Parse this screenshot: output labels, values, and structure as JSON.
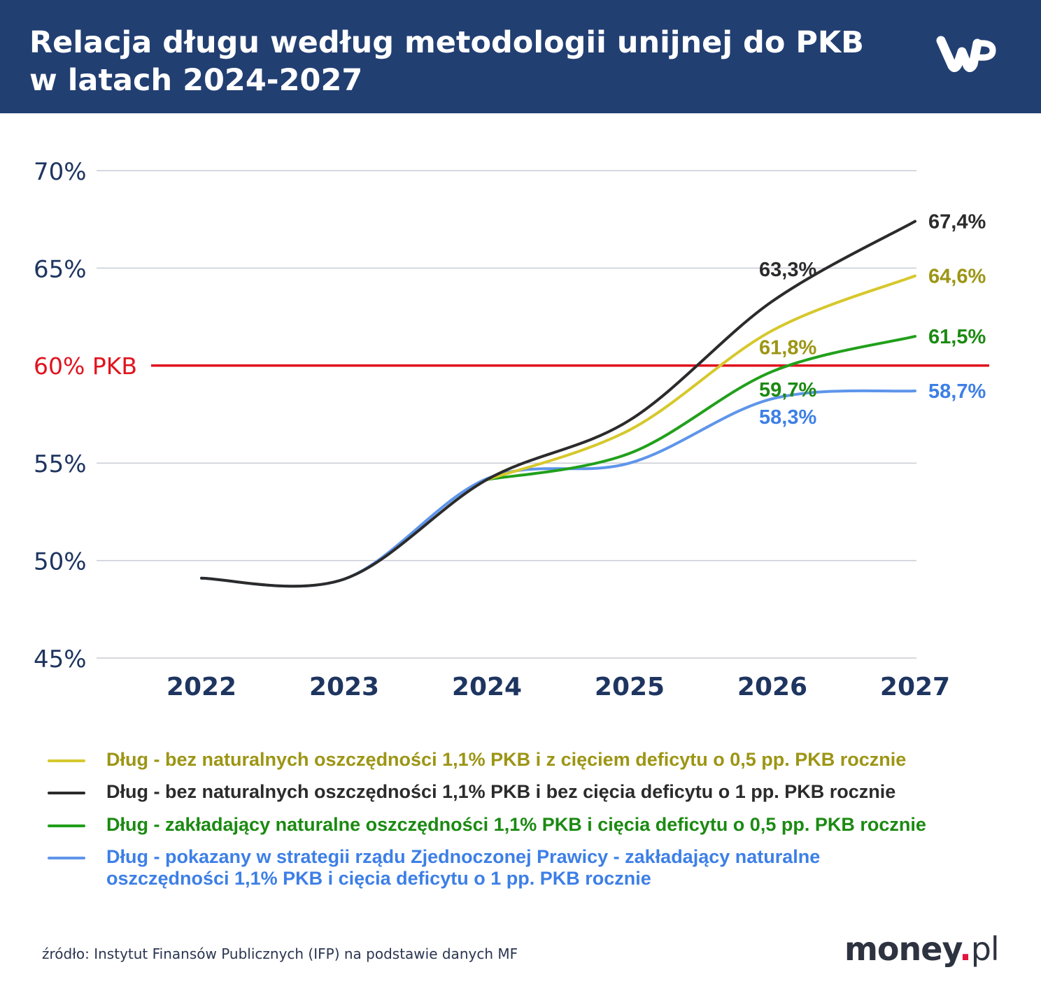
{
  "header": {
    "title": "Relacja długu według metodologii unijnej do PKB\nw latach 2024-2027",
    "logo": "WP",
    "background": "#223f72"
  },
  "chart_data": {
    "type": "line",
    "title": "Relacja długu według metodologii unijnej do PKB w latach 2024-2027",
    "xlabel": "",
    "ylabel": "",
    "categories": [
      "2022",
      "2023",
      "2024",
      "2025",
      "2026",
      "2027"
    ],
    "ylim": [
      45,
      70
    ],
    "yticks": [
      {
        "value": 70,
        "label": "70%"
      },
      {
        "value": 65,
        "label": "65%"
      },
      {
        "value": 55,
        "label": "55%"
      },
      {
        "value": 50,
        "label": "50%"
      },
      {
        "value": 45,
        "label": "45%"
      }
    ],
    "grid": true,
    "reference_line": {
      "value": 60,
      "label": "60% PKB",
      "color": "#e0141e"
    },
    "series": [
      {
        "name": "Dług - bez naturalnych oszczędności 1,1% PKB i z cięciem deficytu o 0,5 pp. PKB rocznie",
        "color": "#d6c82c",
        "label_color": "#9c9514",
        "values": [
          null,
          null,
          54.15,
          56.7,
          61.8,
          64.6
        ],
        "labels": {
          "2026": "61,8%",
          "2027": "64,6%"
        }
      },
      {
        "name": "Dług - bez naturalnych oszczędności 1,1% PKB i bez cięcia deficytu o 1 pp. PKB rocznie",
        "color": "#2b2b2b",
        "label_color": "#2b2b2b",
        "values": [
          49.1,
          49.05,
          54.15,
          57.2,
          63.3,
          67.4
        ],
        "labels": {
          "2026": "63,3%",
          "2027": "67,4%"
        }
      },
      {
        "name": "Dług - zakładający naturalne oszczędności 1,1% PKB i cięcia deficytu o 0,5 pp. PKB rocznie",
        "color": "#21a01b",
        "label_color": "#1b8a12",
        "values": [
          null,
          null,
          54.15,
          55.5,
          59.7,
          61.5
        ],
        "labels": {
          "2026": "59,7%",
          "2027": "61,5%"
        }
      },
      {
        "name": "Dług - pokazany w strategii rządu Zjednoczonej Prawicy - zakładający naturalne oszczędności 1,1% PKB i cięcia deficytu o 1 pp. PKB rocznie",
        "color": "#5e95ea",
        "label_color": "#3d7fe6",
        "values": [
          49.1,
          49.05,
          54.2,
          55.0,
          58.3,
          58.7
        ],
        "labels": {
          "2026": "58,3%",
          "2027": "58,7%"
        }
      }
    ],
    "legend_position": "bottom"
  },
  "footer": {
    "source": "źródło: Instytut Finansów Publicznych (IFP) na podstawie danych MF",
    "brand_main": "money",
    "brand_dot": ".",
    "brand_tld": "pl"
  }
}
